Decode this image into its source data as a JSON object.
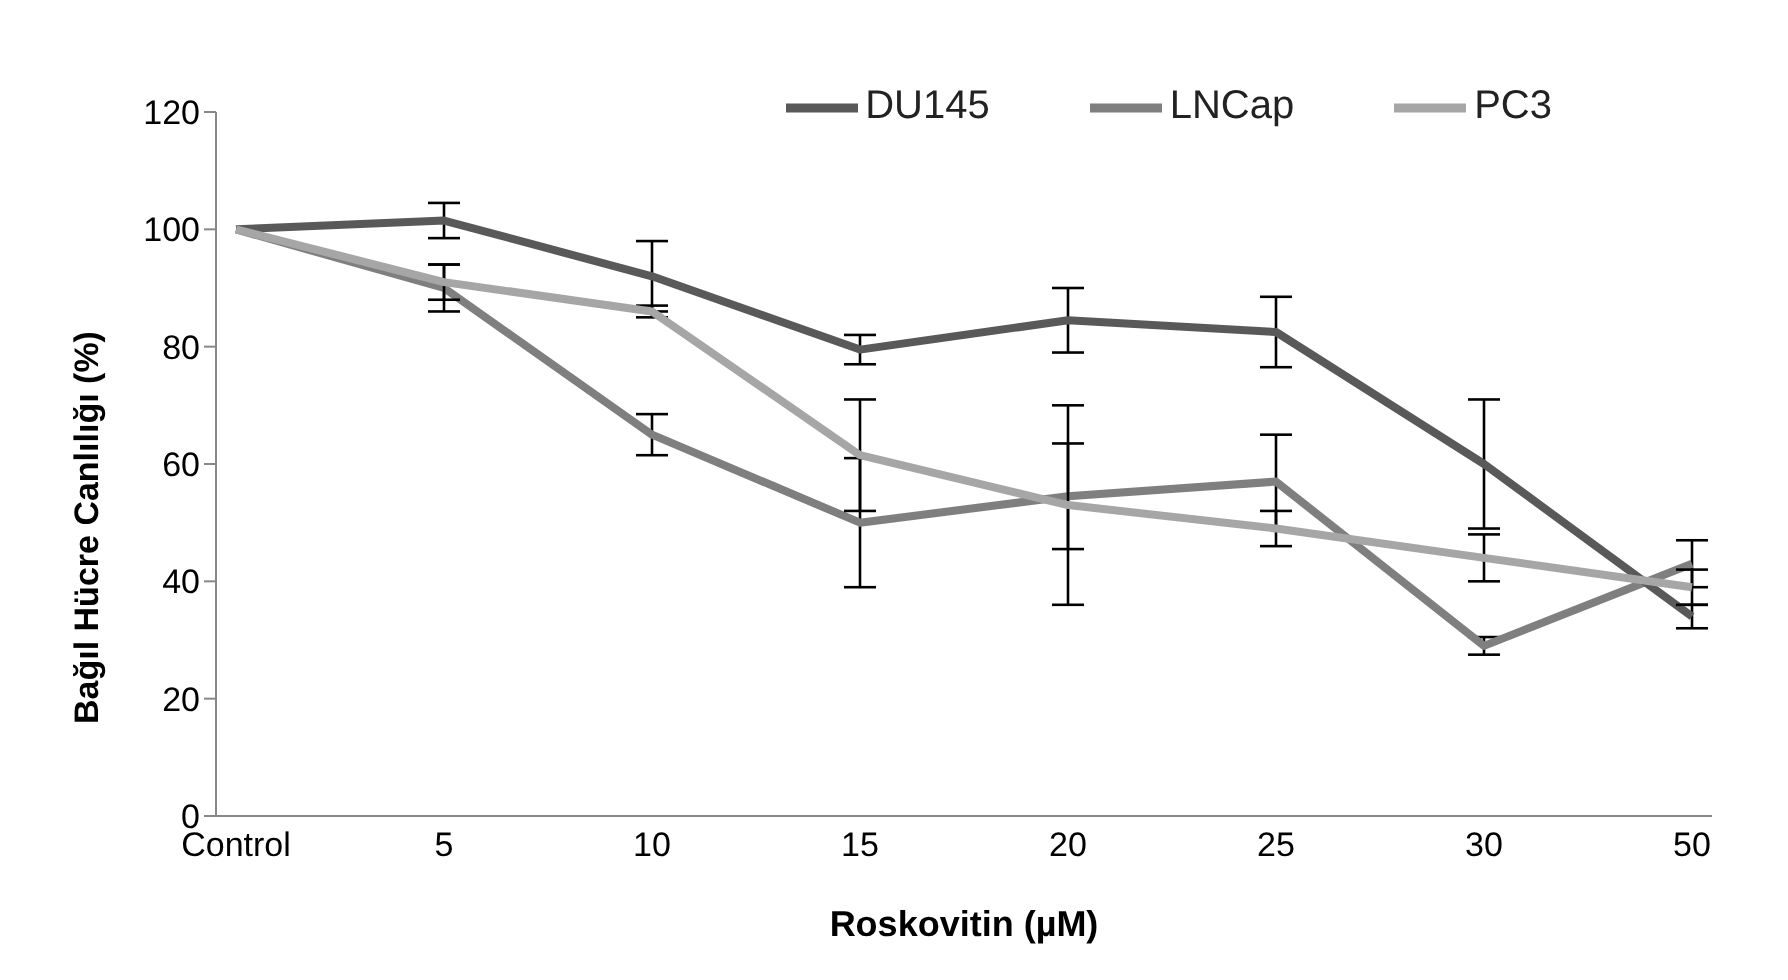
{
  "chart_data": {
    "type": "line",
    "xlabel": "Roskovitin (µM)",
    "ylabel": "Bağıl Hücre Canlılığı  (%)",
    "categories": [
      "Control",
      "5",
      "10",
      "15",
      "20",
      "25",
      "30",
      "50"
    ],
    "series": [
      {
        "name": "LNCap",
        "color": "#7f7f7f",
        "values": [
          100,
          90,
          65,
          50,
          54.5,
          57,
          29,
          43
        ],
        "errors": [
          null,
          4,
          3.5,
          11,
          9,
          8,
          1.5,
          4
        ]
      },
      {
        "name": "DU145",
        "color": "#595959",
        "values": [
          100,
          101.5,
          92,
          79.5,
          84.5,
          82.5,
          60,
          34
        ],
        "errors": [
          null,
          3,
          6,
          2.5,
          5.5,
          6,
          11,
          2
        ]
      },
      {
        "name": "PC3",
        "color": "#a6a6a6",
        "values": [
          100,
          91,
          86,
          61.5,
          53,
          49,
          44,
          39
        ],
        "errors": [
          null,
          3,
          1,
          9.5,
          17,
          3,
          4,
          3
        ]
      }
    ],
    "ylim": [
      0,
      120
    ],
    "yticks": [
      0,
      20,
      40,
      60,
      80,
      100,
      120
    ],
    "grid": false,
    "legend": "top right",
    "marker": "none",
    "line_style": "solid"
  }
}
